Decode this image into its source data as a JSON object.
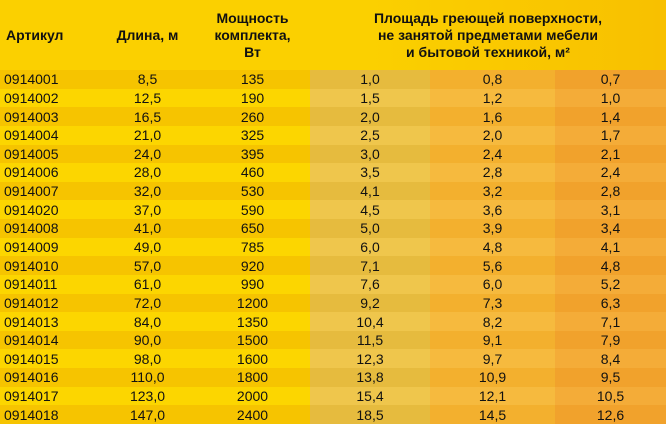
{
  "table": {
    "header": [
      "Артикул",
      "Длина, м",
      [
        "Мощность",
        "комплекта,",
        "Вт"
      ],
      [
        "Площадь греющей поверхности,",
        "не занятой предметами мебели",
        "и бытовой техникой, м²"
      ]
    ],
    "rows": [
      [
        "0914001",
        "8,5",
        "135",
        "1,0",
        "0,8",
        "0,7"
      ],
      [
        "0914002",
        "12,5",
        "190",
        "1,5",
        "1,2",
        "1,0"
      ],
      [
        "0914003",
        "16,5",
        "260",
        "2,0",
        "1,6",
        "1,4"
      ],
      [
        "0914004",
        "21,0",
        "325",
        "2,5",
        "2,0",
        "1,7"
      ],
      [
        "0914005",
        "24,0",
        "395",
        "3,0",
        "2,4",
        "2,1"
      ],
      [
        "0914006",
        "28,0",
        "460",
        "3,5",
        "2,8",
        "2,4"
      ],
      [
        "0914007",
        "32,0",
        "530",
        "4,1",
        "3,2",
        "2,8"
      ],
      [
        "0914020",
        "37,0",
        "590",
        "4,5",
        "3,6",
        "3,1"
      ],
      [
        "0914008",
        "41,0",
        "650",
        "5,0",
        "3,9",
        "3,4"
      ],
      [
        "0914009",
        "49,0",
        "785",
        "6,0",
        "4,8",
        "4,1"
      ],
      [
        "0914010",
        "57,0",
        "920",
        "7,1",
        "5,6",
        "4,8"
      ],
      [
        "0914011",
        "61,0",
        "990",
        "7,6",
        "6,0",
        "5,2"
      ],
      [
        "0914012",
        "72,0",
        "1200",
        "9,2",
        "7,3",
        "6,3"
      ],
      [
        "0914013",
        "84,0",
        "1350",
        "10,4",
        "8,2",
        "7,1"
      ],
      [
        "0914014",
        "90,0",
        "1500",
        "11,5",
        "9,1",
        "7,9"
      ],
      [
        "0914015",
        "98,0",
        "1600",
        "12,3",
        "9,7",
        "8,4"
      ],
      [
        "0914016",
        "110,0",
        "1800",
        "13,8",
        "10,9",
        "9,5"
      ],
      [
        "0914017",
        "123,0",
        "2000",
        "15,4",
        "12,1",
        "10,5"
      ],
      [
        "0914018",
        "147,0",
        "2400",
        "18,5",
        "14,5",
        "12,6"
      ]
    ]
  }
}
